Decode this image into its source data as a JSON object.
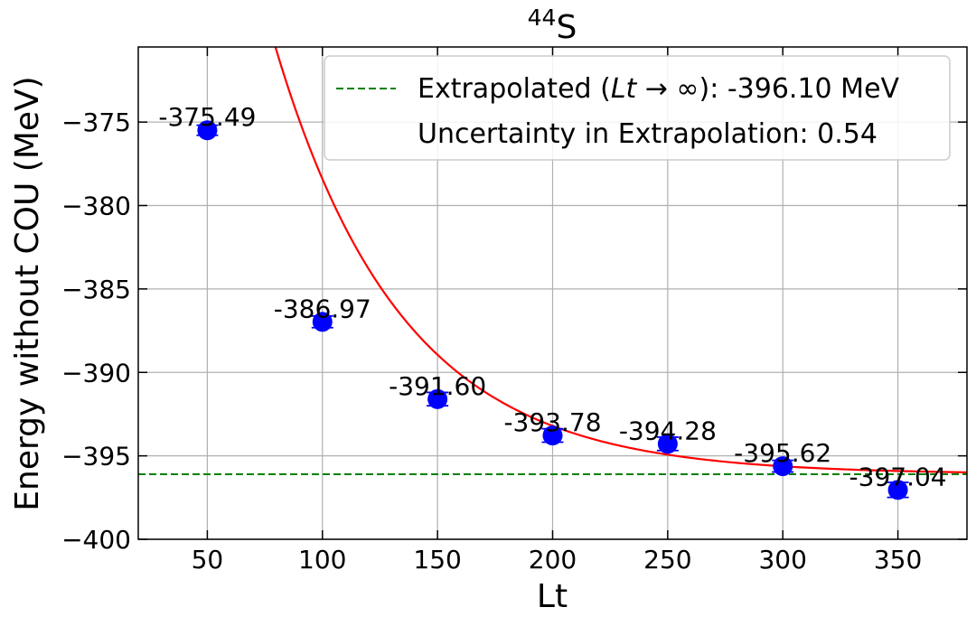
{
  "chart_data": {
    "type": "scatter",
    "title_main": "S",
    "title_superscript": "44",
    "xlabel": "Lt",
    "ylabel": "Energy without COU (MeV)",
    "xlim": [
      20,
      380
    ],
    "ylim": [
      -400,
      -370.5
    ],
    "xticks": [
      "50",
      "100",
      "150",
      "200",
      "250",
      "300",
      "350"
    ],
    "xtick_values": [
      50,
      100,
      150,
      200,
      250,
      300,
      350
    ],
    "yticks": [
      "−375",
      "−380",
      "−385",
      "−390",
      "−395",
      "−400"
    ],
    "ytick_values": [
      -375,
      -380,
      -385,
      -390,
      -395,
      -400
    ],
    "grid": true,
    "points": {
      "x": [
        50,
        100,
        150,
        200,
        250,
        300,
        350
      ],
      "y": [
        -375.49,
        -386.97,
        -391.6,
        -393.78,
        -394.28,
        -395.62,
        -397.04
      ],
      "labels": [
        "-375.49",
        "-386.97",
        "-391.60",
        "-393.78",
        "-394.28",
        "-395.62",
        "-397.04"
      ],
      "error": [
        0.3,
        0.35,
        0.4,
        0.4,
        0.4,
        0.35,
        0.45
      ],
      "color": "#0000ff"
    },
    "fit_curve": {
      "model": "exponential",
      "asymptote": -396.1,
      "amplitude": 43.73,
      "rate": 0.0181,
      "color": "#ff0000"
    },
    "extrapolated_line": {
      "y": -396.1,
      "color": "#008000",
      "style": "dashed"
    },
    "legend": {
      "placement": "top-right",
      "entries": [
        {
          "prefix": "Extrapolated (",
          "math_var": "Lt",
          "math_rest": " → ∞",
          "suffix": "): -396.10 MeV"
        },
        {
          "text": "Uncertainty in Extrapolation: 0.54"
        }
      ]
    }
  }
}
